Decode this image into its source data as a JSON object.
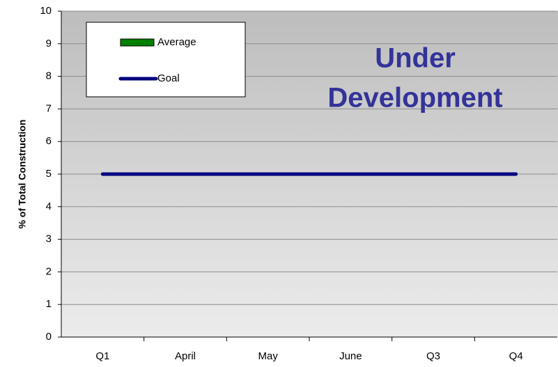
{
  "chart_data": {
    "type": "bar",
    "y_label": "% of Total Construction",
    "annotation": [
      "Under",
      "Development"
    ],
    "categories": [
      "Q1",
      "April",
      "May",
      "June",
      "Q3",
      "Q4"
    ],
    "series": [
      {
        "name": "Average",
        "type": "bar",
        "color": "#008000",
        "values": [
          null,
          null,
          null,
          null,
          null,
          null
        ]
      },
      {
        "name": "Goal",
        "type": "line",
        "color": "#000080",
        "values": [
          5,
          5,
          5,
          5,
          5,
          5
        ]
      }
    ],
    "ylim": [
      0,
      10
    ],
    "yticks": [
      0,
      1,
      2,
      3,
      4,
      5,
      6,
      7,
      8,
      9,
      10
    ],
    "grid": true,
    "legend": "top-left"
  }
}
